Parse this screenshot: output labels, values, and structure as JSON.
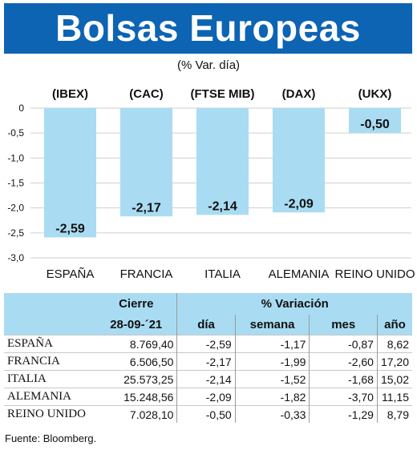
{
  "title": "Bolsas Europeas",
  "subtitle": "(% Var. día)",
  "colors": {
    "header_bg": "#0d64b3",
    "bar": "#a9dcf2",
    "table_header": "#a9dcf2"
  },
  "chart_data": {
    "type": "bar",
    "title": "Bolsas Europeas",
    "subtitle": "(% Var. día)",
    "categories": [
      "ESPAÑA",
      "FRANCIA",
      "ITALIA",
      "ALEMANIA",
      "REINO UNIDO"
    ],
    "indices": [
      "(IBEX)",
      "(CAC)",
      "(FTSE MIB)",
      "(DAX)",
      "(UKX)"
    ],
    "values": [
      -2.59,
      -2.17,
      -2.14,
      -2.09,
      -0.5
    ],
    "value_labels": [
      "-2,59",
      "-2,17",
      "-2,14",
      "-2,09",
      "-0,50"
    ],
    "yticks": [
      "0",
      "-0,5",
      "-1,0",
      "-1,5",
      "-2,0",
      "-2,5",
      "-3,0"
    ],
    "ytick_values": [
      0,
      -0.5,
      -1.0,
      -1.5,
      -2.0,
      -2.5,
      -3.0
    ],
    "ylim": [
      -3.0,
      0
    ],
    "grid": true
  },
  "table": {
    "header_group_1": "Cierre",
    "header_group_2": "% Variación",
    "columns": [
      "28-09-´21",
      "día",
      "semana",
      "mes",
      "año"
    ],
    "rows": [
      {
        "name": "ESPAÑA",
        "cierre": "8.769,40",
        "dia": "-2,59",
        "semana": "-1,17",
        "mes": "-0,87",
        "ano": "8,62"
      },
      {
        "name": "FRANCIA",
        "cierre": "6.506,50",
        "dia": "-2,17",
        "semana": "-1,99",
        "mes": "-2,60",
        "ano": "17,20"
      },
      {
        "name": "ITALIA",
        "cierre": "25.573,25",
        "dia": "-2,14",
        "semana": "-1,52",
        "mes": "-1,68",
        "ano": "15,02"
      },
      {
        "name": "ALEMANIA",
        "cierre": "15.248,56",
        "dia": "-2,09",
        "semana": "-1,82",
        "mes": "-3,70",
        "ano": "11,15"
      },
      {
        "name": "REINO UNIDO",
        "cierre": "7.028,10",
        "dia": "-0,50",
        "semana": "-0,33",
        "mes": "-1,29",
        "ano": "8,79"
      }
    ]
  },
  "source": "Fuente: Bloomberg."
}
